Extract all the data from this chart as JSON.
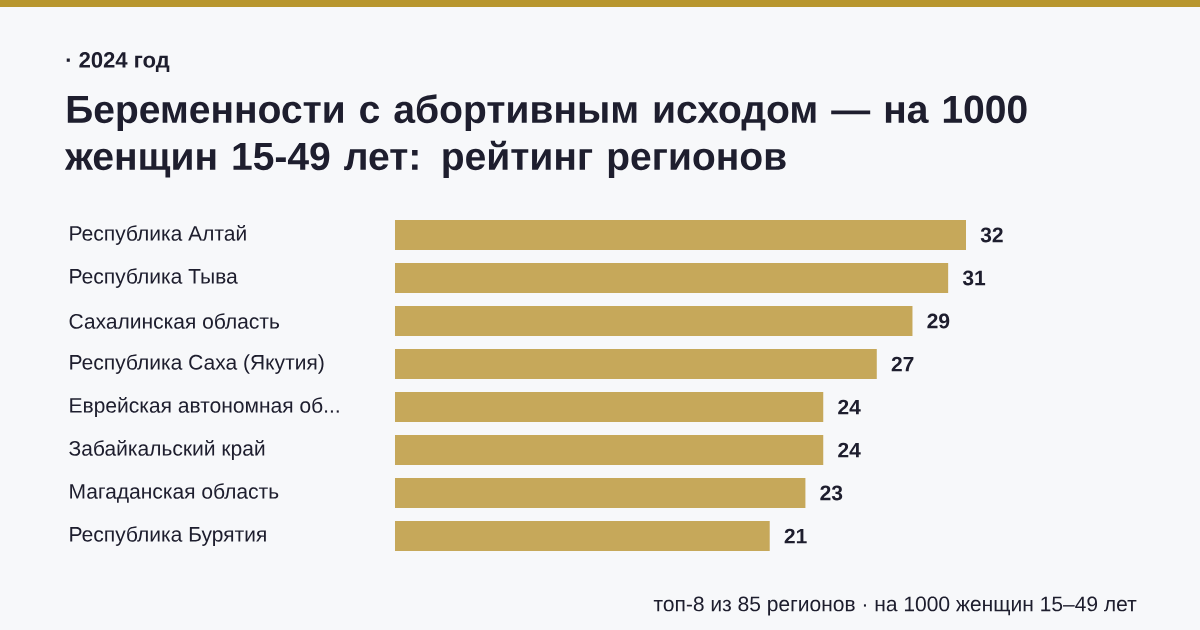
{
  "chart_data": {
    "type": "bar",
    "orientation": "horizontal",
    "title": "Беременности с абортивным исходом — на 1000 женщин 15-49 лет: рейтинг регионов",
    "subtitle": "· 2024 год",
    "categories": [
      "Республика Алтай",
      "Республика Тыва",
      "Сахалинская область",
      "Республика Саха (Якутия)",
      "Еврейская автономная об...",
      "Забайкальский край",
      "Магаданская область",
      "Республика Бурятия"
    ],
    "values": [
      32,
      31,
      29,
      27,
      24,
      24,
      23,
      21
    ],
    "color": "#c6a85a",
    "data_labels": true,
    "annotations": [
      "топ-8 из 85 регионов · на 1000 женщин 15–49 лет"
    ]
  }
}
